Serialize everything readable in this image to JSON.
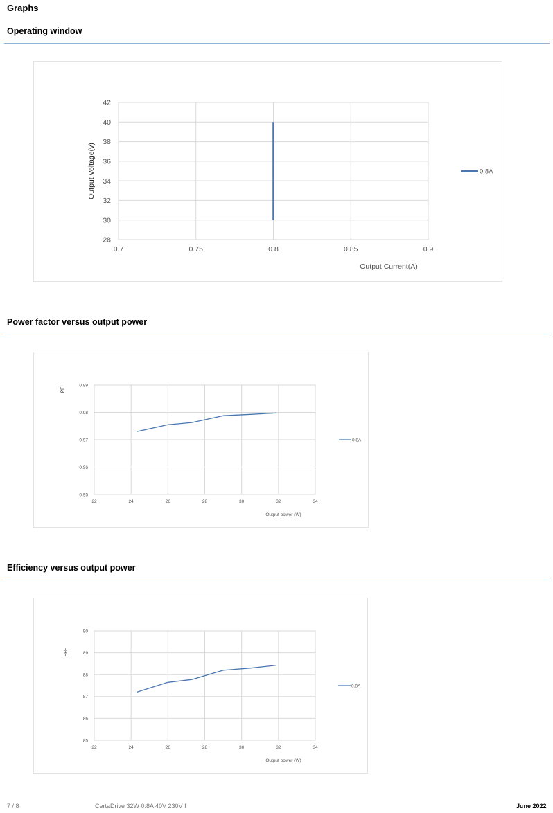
{
  "page": {
    "heading": "Graphs"
  },
  "sections": [
    {
      "title": "Operating window"
    },
    {
      "title": "Power factor versus output power"
    },
    {
      "title": "Efficiency versus output power"
    }
  ],
  "chart_data": [
    {
      "type": "line",
      "title": "",
      "xlabel": "Output Current(A)",
      "ylabel": "Output Voltage(v)",
      "xlim": [
        0.7,
        0.9
      ],
      "ylim": [
        28,
        42
      ],
      "xticks": [
        "0.7",
        "0.75",
        "0.8",
        "0.85",
        "0.9"
      ],
      "yticks": [
        "28",
        "30",
        "32",
        "34",
        "36",
        "38",
        "40",
        "42"
      ],
      "grid": true,
      "legend_position": "right",
      "color": "#4a76b0",
      "series": [
        {
          "name": "0.8A",
          "x": [
            0.8,
            0.8
          ],
          "y": [
            30,
            40
          ]
        }
      ]
    },
    {
      "type": "line",
      "title": "",
      "xlabel": "Output power (W)",
      "ylabel": "PF",
      "xlim": [
        22,
        34
      ],
      "ylim": [
        0.95,
        0.99
      ],
      "xticks": [
        "22",
        "24",
        "26",
        "28",
        "30",
        "32",
        "34"
      ],
      "yticks": [
        "0.95",
        "0.96",
        "0.97",
        "0.98",
        "0.99"
      ],
      "grid": true,
      "legend_position": "right",
      "color": "#4a76b0",
      "series": [
        {
          "name": "0.8A",
          "x": [
            24.3,
            26.0,
            27.3,
            29.0,
            30.5,
            31.9
          ],
          "y": [
            0.973,
            0.9755,
            0.9763,
            0.9788,
            0.9793,
            0.9798
          ]
        }
      ]
    },
    {
      "type": "line",
      "title": "",
      "xlabel": "Output power (W)",
      "ylabel": "EFF",
      "xlim": [
        22,
        34
      ],
      "ylim": [
        85,
        90
      ],
      "xticks": [
        "22",
        "24",
        "26",
        "28",
        "30",
        "32",
        "34"
      ],
      "yticks": [
        "85",
        "86",
        "87",
        "88",
        "89",
        "90"
      ],
      "grid": true,
      "legend_position": "right",
      "color": "#4a76b0",
      "series": [
        {
          "name": "0.8A",
          "x": [
            24.3,
            26.0,
            27.3,
            29.0,
            30.5,
            31.9
          ],
          "y": [
            87.2,
            87.65,
            87.78,
            88.2,
            88.3,
            88.43
          ]
        }
      ]
    }
  ],
  "footer": {
    "page_number": "7 / 8",
    "product": "CertaDrive 32W 0.8A 40V 230V I",
    "date": "June 2022"
  }
}
